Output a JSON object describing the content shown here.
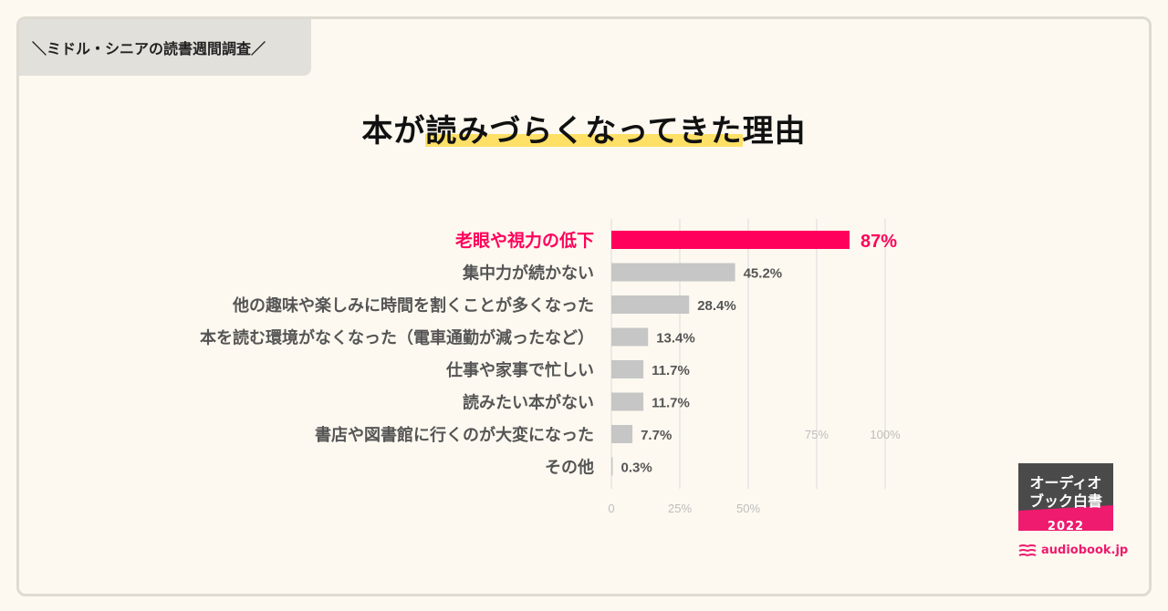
{
  "header": {
    "tag": "＼ミドル・シニアの読書週間調査／",
    "title_pre": "本が",
    "title_highlight": "読みづらくなってきた",
    "title_post": "理由"
  },
  "chart_data": {
    "type": "bar",
    "orientation": "horizontal",
    "categories": [
      "老眼や視力の低下",
      "集中力が続かない",
      "他の趣味や楽しみに時間を割くことが多くなった",
      "本を読む環境がなくなった（電車通勤が減ったなど）",
      "仕事や家事で忙しい",
      "読みたい本がない",
      "書店や図書館に行くのが大変になった",
      "その他"
    ],
    "values": [
      87,
      45.2,
      28.4,
      13.4,
      11.7,
      11.7,
      7.7,
      0.3
    ],
    "value_labels": [
      "87%",
      "45.2%",
      "28.4%",
      "13.4%",
      "11.7%",
      "11.7%",
      "7.7%",
      "0.3%"
    ],
    "highlight_index": 0,
    "xlim": [
      0,
      100
    ],
    "xticks_bottom": [
      {
        "value": 0,
        "label": "0"
      },
      {
        "value": 25,
        "label": "25%"
      },
      {
        "value": 50,
        "label": "50%"
      }
    ],
    "xticks_upper": [
      {
        "value": 75,
        "label": "75%"
      },
      {
        "value": 100,
        "label": "100%"
      }
    ],
    "grid": true,
    "colors": {
      "highlight": "#ff005c",
      "bar": "#c6c6c6",
      "grid": "#dcdcdc",
      "label": "#555555",
      "tick": "#bdbdbd"
    }
  },
  "badge": {
    "line1": "オーディオ",
    "line2": "ブック白書",
    "year": "2022",
    "color_dark": "#4a4a4a",
    "color_accent": "#ee1b6e"
  },
  "brand": {
    "name": "audiobook.jp"
  }
}
